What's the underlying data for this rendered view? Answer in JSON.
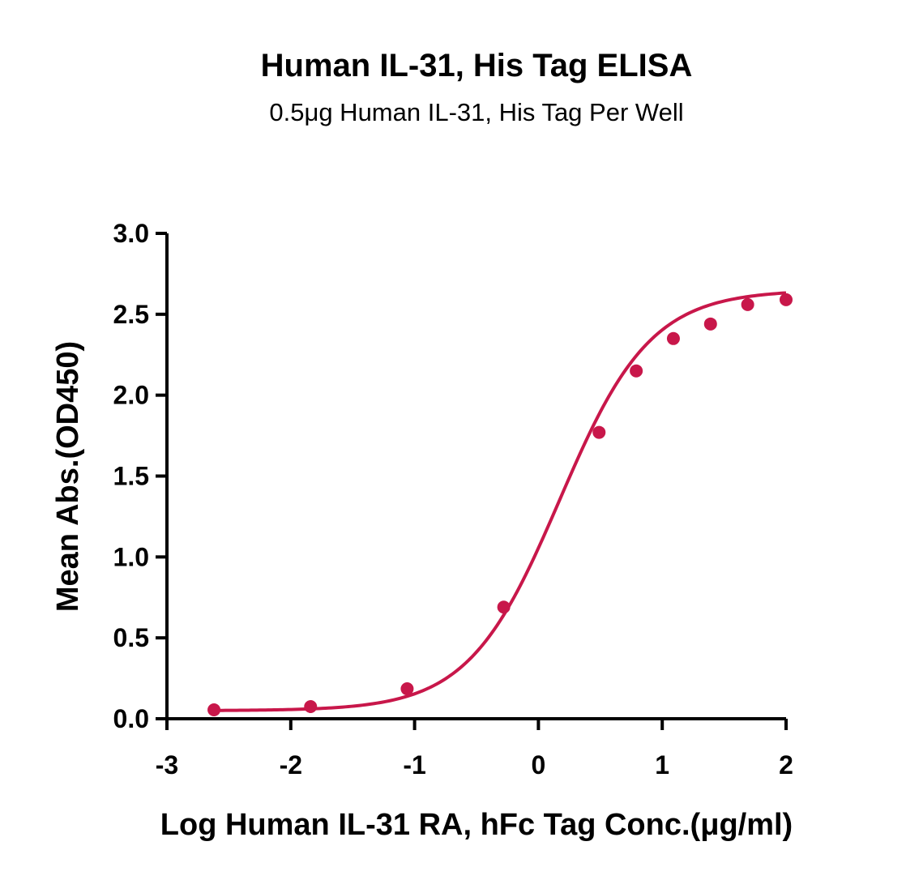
{
  "chart_data": {
    "type": "scatter",
    "title": "Human IL-31, His Tag ELISA",
    "subtitle": "0.5μg Human IL-31, His Tag Per Well",
    "xlabel": "Log Human IL-31 RA, hFc  Tag Conc.(μg/ml)",
    "ylabel": "Mean Abs.(OD450)",
    "xlim": [
      -3,
      2
    ],
    "ylim": [
      0,
      3
    ],
    "x_ticks": [
      "-3",
      "-2",
      "-1",
      "0",
      "1",
      "2"
    ],
    "y_ticks": [
      "0.0",
      "0.5",
      "1.0",
      "1.5",
      "2.0",
      "2.5",
      "3.0"
    ],
    "grid": false,
    "color": "#c8174a",
    "series": [
      {
        "x": [
          -2.62,
          -1.84,
          -1.06,
          -0.28,
          0.49,
          0.79,
          1.09,
          1.39,
          1.69,
          2.0
        ],
        "y": [
          0.055,
          0.075,
          0.185,
          0.69,
          1.77,
          2.15,
          2.35,
          2.44,
          2.56,
          2.59
        ]
      }
    ],
    "fit": {
      "model": "4PL",
      "bottom": 0.05,
      "top": 2.65,
      "log_ec50": 0.17,
      "hill_slope": 1.18
    }
  }
}
